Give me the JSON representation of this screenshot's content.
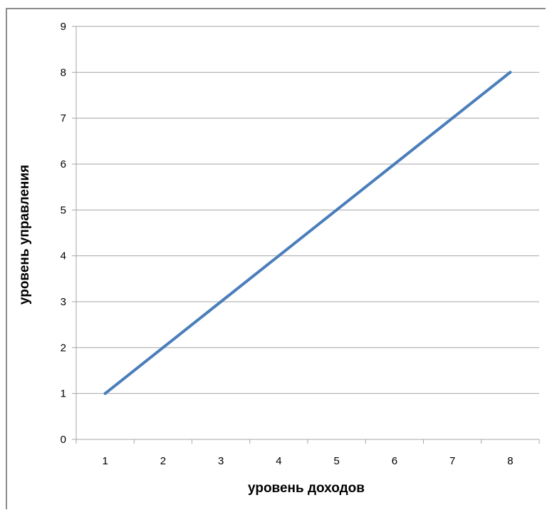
{
  "chart_data": {
    "type": "line",
    "title": "",
    "xlabel": "уровень доходов",
    "ylabel": "уровень управления",
    "categories": [
      "1",
      "2",
      "3",
      "4",
      "5",
      "6",
      "7",
      "8"
    ],
    "series": [
      {
        "values": [
          1,
          2,
          3,
          4,
          5,
          6,
          7,
          8
        ],
        "color": "#4a7ebb"
      }
    ],
    "ylim": [
      0,
      9
    ],
    "yticks": [
      "0",
      "1",
      "2",
      "3",
      "4",
      "5",
      "6",
      "7",
      "8",
      "9"
    ],
    "grid": "horizontal",
    "legend": "none",
    "colors": {
      "line": "#4a7ebb",
      "grid": "#a6a6a6",
      "axis": "#a6a6a6",
      "frame": "#8c8c8c"
    }
  }
}
